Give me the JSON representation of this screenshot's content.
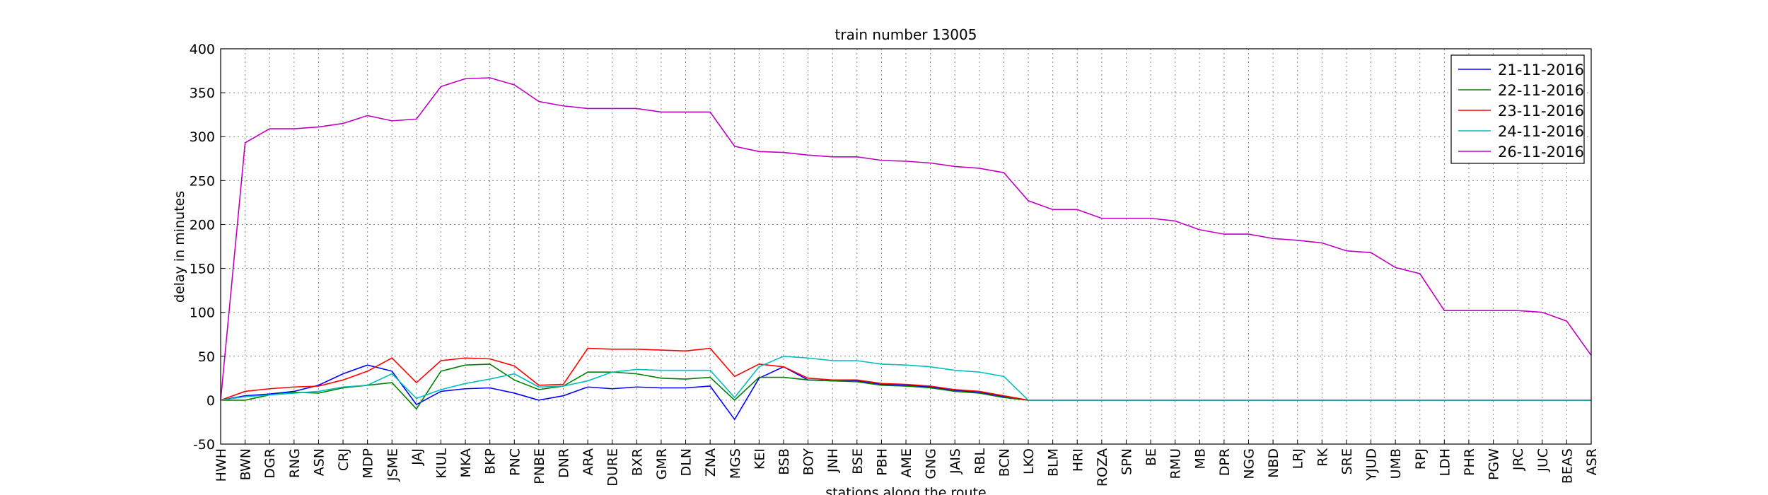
{
  "chart_data": {
    "type": "line",
    "title": "train number 13005",
    "x_label": "stations along the route",
    "y_label": "delay in minutes",
    "categories": [
      "HWH",
      "BWN",
      "DGR",
      "RNG",
      "ASN",
      "CRJ",
      "MDP",
      "JSME",
      "JAJ",
      "KIUL",
      "MKA",
      "BKP",
      "PNC",
      "PNBE",
      "DNR",
      "ARA",
      "DURE",
      "BXR",
      "GMR",
      "DLN",
      "ZNA",
      "MGS",
      "KEI",
      "BSB",
      "BOY",
      "JNH",
      "BSE",
      "PBH",
      "AME",
      "GNG",
      "JAIS",
      "RBL",
      "BCN",
      "LKO",
      "BLM",
      "HRI",
      "ROZA",
      "SPN",
      "BE",
      "RMU",
      "MB",
      "DPR",
      "NGG",
      "NBD",
      "LRJ",
      "RK",
      "SRE",
      "YJUD",
      "UMB",
      "RPJ",
      "LDH",
      "PHR",
      "PGW",
      "JRC",
      "JUC",
      "BEAS",
      "ASR"
    ],
    "series": [
      {
        "name": "21-11-2016",
        "color": "#0000ff",
        "values": [
          0,
          5,
          7,
          10,
          17,
          30,
          40,
          33,
          -5,
          10,
          13,
          14,
          8,
          0,
          5,
          15,
          13,
          15,
          14,
          14,
          16,
          -22,
          25,
          38,
          23,
          22,
          22,
          18,
          17,
          15,
          11,
          9,
          4,
          0,
          0,
          0,
          0,
          0,
          0,
          0,
          0,
          0,
          0,
          0,
          0,
          0,
          0,
          0,
          0,
          0,
          0,
          0,
          0,
          0,
          0,
          0,
          0
        ]
      },
      {
        "name": "22-11-2016",
        "color": "#008000",
        "values": [
          0,
          0,
          6,
          9,
          8,
          14,
          17,
          20,
          -10,
          33,
          40,
          41,
          23,
          12,
          16,
          32,
          32,
          30,
          25,
          24,
          26,
          0,
          26,
          26,
          23,
          22,
          21,
          17,
          16,
          14,
          10,
          8,
          3,
          0,
          0,
          0,
          0,
          0,
          0,
          0,
          0,
          0,
          0,
          0,
          0,
          0,
          0,
          0,
          0,
          0,
          0,
          0,
          0,
          0,
          0,
          0,
          0
        ]
      },
      {
        "name": "23-11-2016",
        "color": "#ff0000",
        "values": [
          0,
          10,
          13,
          15,
          16,
          23,
          33,
          48,
          20,
          45,
          48,
          47,
          39,
          17,
          18,
          59,
          58,
          58,
          57,
          56,
          59,
          27,
          41,
          38,
          25,
          23,
          23,
          19,
          18,
          16,
          12,
          10,
          5,
          0,
          0,
          0,
          0,
          0,
          0,
          0,
          0,
          0,
          0,
          0,
          0,
          0,
          0,
          0,
          0,
          0,
          0,
          0,
          0,
          0,
          0,
          0,
          0
        ]
      },
      {
        "name": "24-11-2016",
        "color": "#00bfbf",
        "values": [
          0,
          4,
          6,
          8,
          10,
          15,
          17,
          30,
          2,
          12,
          19,
          24,
          30,
          15,
          16,
          22,
          32,
          35,
          34,
          34,
          34,
          3,
          38,
          50,
          48,
          45,
          45,
          41,
          40,
          38,
          34,
          32,
          27,
          0,
          0,
          0,
          0,
          0,
          0,
          0,
          0,
          0,
          0,
          0,
          0,
          0,
          0,
          0,
          0,
          0,
          0,
          0,
          0,
          0,
          0,
          0,
          0
        ]
      },
      {
        "name": "26-11-2016",
        "color": "#bf00bf",
        "values": [
          0,
          293,
          309,
          309,
          311,
          315,
          324,
          318,
          320,
          357,
          366,
          367,
          359,
          340,
          335,
          332,
          332,
          332,
          328,
          328,
          328,
          289,
          283,
          282,
          279,
          277,
          277,
          273,
          272,
          270,
          266,
          264,
          259,
          227,
          217,
          217,
          207,
          207,
          207,
          204,
          194,
          189,
          189,
          184,
          182,
          179,
          170,
          168,
          151,
          144,
          102,
          102,
          102,
          102,
          100,
          90,
          51
        ]
      }
    ],
    "ylim": [
      -50,
      400
    ],
    "yticks": [
      -50,
      0,
      50,
      100,
      150,
      200,
      250,
      300,
      350,
      400
    ],
    "grid": true,
    "legend": "upper right"
  }
}
